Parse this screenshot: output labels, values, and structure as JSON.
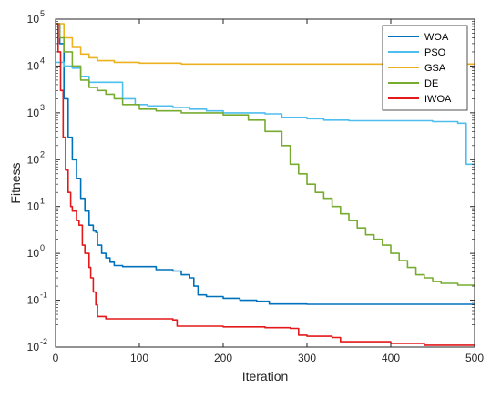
{
  "chart_data": {
    "type": "line",
    "xlabel": "Iteration",
    "ylabel": "Fitness",
    "xlim": [
      0,
      500
    ],
    "ylim": [
      0.01,
      100000
    ],
    "yscale": "log",
    "grid": false,
    "legend_position": "top-right",
    "x_ticks": [
      "0",
      "100",
      "200",
      "300",
      "400",
      "500"
    ],
    "y_ticks": [
      {
        "base": "10",
        "exp": "-2"
      },
      {
        "base": "10",
        "exp": "-1"
      },
      {
        "base": "10",
        "exp": "0"
      },
      {
        "base": "10",
        "exp": "1"
      },
      {
        "base": "10",
        "exp": "2"
      },
      {
        "base": "10",
        "exp": "3"
      },
      {
        "base": "10",
        "exp": "4"
      },
      {
        "base": "10",
        "exp": "5"
      }
    ],
    "series": [
      {
        "name": "WOA",
        "color": "#0072BD",
        "points": [
          [
            0,
            80000
          ],
          [
            5,
            30000
          ],
          [
            10,
            2000
          ],
          [
            15,
            300
          ],
          [
            20,
            100
          ],
          [
            25,
            40
          ],
          [
            30,
            15
          ],
          [
            35,
            8
          ],
          [
            40,
            4
          ],
          [
            45,
            3
          ],
          [
            48,
            2.8
          ],
          [
            50,
            1.5
          ],
          [
            55,
            1
          ],
          [
            60,
            0.8
          ],
          [
            65,
            0.65
          ],
          [
            70,
            0.55
          ],
          [
            80,
            0.52
          ],
          [
            100,
            0.52
          ],
          [
            120,
            0.45
          ],
          [
            140,
            0.42
          ],
          [
            150,
            0.35
          ],
          [
            160,
            0.3
          ],
          [
            165,
            0.2
          ],
          [
            170,
            0.13
          ],
          [
            180,
            0.12
          ],
          [
            200,
            0.11
          ],
          [
            220,
            0.1
          ],
          [
            240,
            0.095
          ],
          [
            255,
            0.083
          ],
          [
            300,
            0.082
          ],
          [
            400,
            0.082
          ],
          [
            500,
            0.082
          ]
        ]
      },
      {
        "name": "PSO",
        "color": "#4DBEEE",
        "points": [
          [
            0,
            12000
          ],
          [
            10,
            10000
          ],
          [
            20,
            9000
          ],
          [
            30,
            6000
          ],
          [
            40,
            4500
          ],
          [
            50,
            4500
          ],
          [
            70,
            4500
          ],
          [
            80,
            2000
          ],
          [
            90,
            2000
          ],
          [
            95,
            1500
          ],
          [
            110,
            1400
          ],
          [
            140,
            1300
          ],
          [
            160,
            1200
          ],
          [
            180,
            1100
          ],
          [
            200,
            1000
          ],
          [
            250,
            950
          ],
          [
            270,
            800
          ],
          [
            300,
            750
          ],
          [
            320,
            700
          ],
          [
            350,
            680
          ],
          [
            400,
            680
          ],
          [
            450,
            650
          ],
          [
            480,
            600
          ],
          [
            490,
            80
          ],
          [
            500,
            80
          ]
        ]
      },
      {
        "name": "GSA",
        "color": "#EDB120",
        "points": [
          [
            0,
            80000
          ],
          [
            10,
            40000
          ],
          [
            20,
            25000
          ],
          [
            30,
            18000
          ],
          [
            40,
            15000
          ],
          [
            50,
            13000
          ],
          [
            70,
            12000
          ],
          [
            100,
            11500
          ],
          [
            150,
            11000
          ],
          [
            200,
            11000
          ],
          [
            300,
            11000
          ],
          [
            400,
            11000
          ],
          [
            500,
            11000
          ]
        ]
      },
      {
        "name": "DE",
        "color": "#77AC30",
        "points": [
          [
            0,
            80000
          ],
          [
            5,
            40000
          ],
          [
            10,
            20000
          ],
          [
            20,
            10000
          ],
          [
            30,
            5000
          ],
          [
            40,
            3500
          ],
          [
            50,
            3000
          ],
          [
            60,
            2500
          ],
          [
            70,
            2000
          ],
          [
            80,
            1500
          ],
          [
            100,
            1200
          ],
          [
            120,
            1100
          ],
          [
            150,
            1000
          ],
          [
            200,
            900
          ],
          [
            230,
            700
          ],
          [
            250,
            400
          ],
          [
            270,
            200
          ],
          [
            280,
            80
          ],
          [
            290,
            50
          ],
          [
            300,
            30
          ],
          [
            310,
            20
          ],
          [
            320,
            15
          ],
          [
            330,
            10
          ],
          [
            340,
            7
          ],
          [
            350,
            5
          ],
          [
            360,
            3.5
          ],
          [
            370,
            2.5
          ],
          [
            380,
            2
          ],
          [
            390,
            1.5
          ],
          [
            400,
            1
          ],
          [
            410,
            0.7
          ],
          [
            420,
            0.5
          ],
          [
            430,
            0.35
          ],
          [
            440,
            0.3
          ],
          [
            450,
            0.25
          ],
          [
            460,
            0.23
          ],
          [
            480,
            0.21
          ],
          [
            500,
            0.2
          ]
        ]
      },
      {
        "name": "IWOA",
        "color": "#E3191B",
        "points": [
          [
            0,
            80000
          ],
          [
            3,
            20000
          ],
          [
            6,
            3000
          ],
          [
            9,
            300
          ],
          [
            12,
            60
          ],
          [
            15,
            20
          ],
          [
            18,
            10
          ],
          [
            20,
            8
          ],
          [
            25,
            5
          ],
          [
            28,
            4
          ],
          [
            30,
            4
          ],
          [
            32,
            1.5
          ],
          [
            35,
            1
          ],
          [
            40,
            0.5
          ],
          [
            42,
            0.3
          ],
          [
            45,
            0.15
          ],
          [
            48,
            0.08
          ],
          [
            50,
            0.045
          ],
          [
            60,
            0.04
          ],
          [
            100,
            0.04
          ],
          [
            140,
            0.038
          ],
          [
            145,
            0.028
          ],
          [
            200,
            0.027
          ],
          [
            250,
            0.026
          ],
          [
            280,
            0.025
          ],
          [
            290,
            0.018
          ],
          [
            300,
            0.017
          ],
          [
            330,
            0.016
          ],
          [
            340,
            0.013
          ],
          [
            400,
            0.012
          ],
          [
            440,
            0.011
          ],
          [
            480,
            0.011
          ],
          [
            500,
            0.0105
          ]
        ]
      }
    ]
  }
}
